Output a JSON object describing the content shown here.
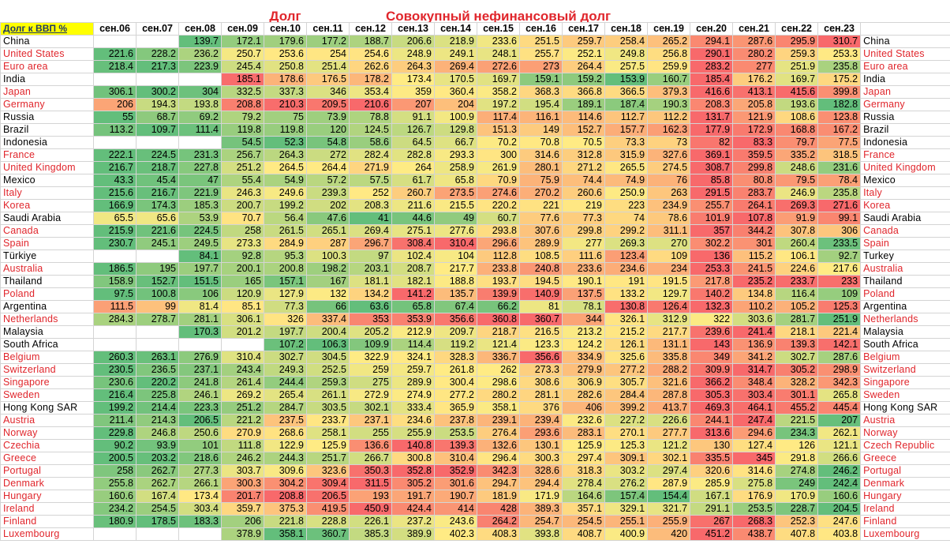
{
  "titles": [
    "Долг",
    "Совокупный нефинансовый долг"
  ],
  "corner": "Долг к ВВП %",
  "columns": [
    "сен.06",
    "сен.07",
    "сен.08",
    "сен.09",
    "сен.10",
    "сен.11",
    "сен.12",
    "сен.13",
    "сен.14",
    "сен.15",
    "сен.16",
    "сен.17",
    "сен.18",
    "сен.19",
    "сен.20",
    "сен.21",
    "сен.22",
    "сен.23"
  ],
  "color_scale": [
    "#63be7b",
    "#ffeb84",
    "#f8696b"
  ],
  "rows": [
    {
      "name": "China",
      "color": "#000000",
      "values": [
        null,
        null,
        139.7,
        172.1,
        179.6,
        177.2,
        188.7,
        206.6,
        218.9,
        233.6,
        251.5,
        259.7,
        258.4,
        265.2,
        294.1,
        287.6,
        295.9,
        310.7
      ]
    },
    {
      "name": "United States",
      "color": "#e0262c",
      "values": [
        221.6,
        228.2,
        236.2,
        250.7,
        253.6,
        254,
        254.6,
        248.9,
        249.1,
        248.1,
        255.7,
        252.1,
        249.8,
        256.8,
        290.1,
        280.2,
        259.3,
        253.3
      ]
    },
    {
      "name": "Euro area",
      "color": "#e0262c",
      "values": [
        218.4,
        217.3,
        223.9,
        245.4,
        250.8,
        251.4,
        262.6,
        264.3,
        269.4,
        272.6,
        273,
        264.4,
        257.5,
        259.9,
        283.2,
        277,
        251.9,
        235.8
      ]
    },
    {
      "name": "India",
      "color": "#000000",
      "values": [
        null,
        null,
        null,
        185.1,
        178.6,
        176.5,
        178.2,
        173.4,
        170.5,
        169.7,
        159.1,
        159.2,
        153.9,
        160.7,
        185.4,
        176.2,
        169.7,
        175.2
      ]
    },
    {
      "name": "Japan",
      "color": "#e0262c",
      "values": [
        306.1,
        300.2,
        304,
        332.5,
        337.3,
        346,
        353.4,
        359,
        360.4,
        358.2,
        368.3,
        366.8,
        366.5,
        379.3,
        416.6,
        413.1,
        415.6,
        399.8
      ]
    },
    {
      "name": "Germany",
      "color": "#e0262c",
      "values": [
        206,
        194.3,
        193.8,
        208.8,
        210.3,
        209.5,
        210.6,
        207,
        204,
        197.2,
        195.4,
        189.1,
        187.4,
        190.3,
        208.3,
        205.8,
        193.6,
        182.8
      ]
    },
    {
      "name": "Russia",
      "color": "#000000",
      "values": [
        55,
        68.7,
        69.2,
        79.2,
        75,
        73.9,
        78.8,
        91.1,
        100.9,
        117.4,
        116.1,
        114.6,
        112.7,
        112.2,
        131.7,
        121.9,
        108.6,
        123.8
      ]
    },
    {
      "name": "Brazil",
      "color": "#000000",
      "values": [
        113.2,
        109.7,
        111.4,
        119.8,
        119.8,
        120,
        124.5,
        126.7,
        129.8,
        151.3,
        149,
        152.7,
        157.7,
        162.3,
        177.9,
        172.9,
        168.8,
        167.2
      ]
    },
    {
      "name": "Indonesia",
      "color": "#000000",
      "values": [
        null,
        null,
        null,
        54.5,
        52.3,
        54.8,
        58.6,
        64.5,
        66.7,
        70.2,
        70.8,
        70.5,
        73.3,
        73,
        82,
        83.3,
        79.7,
        77.5
      ]
    },
    {
      "name": "France",
      "color": "#e0262c",
      "values": [
        222.1,
        224.5,
        231.3,
        256.7,
        264.3,
        272,
        282.4,
        282.8,
        293.3,
        300,
        314.6,
        312.8,
        315.9,
        327.6,
        369.1,
        359.5,
        335.2,
        318.5
      ]
    },
    {
      "name": "United Kingdom",
      "color": "#e0262c",
      "values": [
        216.7,
        218.7,
        227.8,
        251.2,
        264.5,
        264.4,
        271.9,
        264,
        258.9,
        261.9,
        280.1,
        271.2,
        265.5,
        274.5,
        308.7,
        299.8,
        248.6,
        231.6
      ]
    },
    {
      "name": "Mexico",
      "color": "#000000",
      "values": [
        43.3,
        45.4,
        47,
        55.4,
        54.9,
        57.2,
        57.5,
        61.7,
        65.8,
        70.9,
        75.9,
        74.4,
        74.9,
        76,
        85.8,
        80.8,
        79.5,
        78.4
      ]
    },
    {
      "name": "Italy",
      "color": "#e0262c",
      "values": [
        215.6,
        216.7,
        221.9,
        246.3,
        249.6,
        239.3,
        252,
        260.7,
        273.5,
        274.6,
        270.2,
        260.6,
        250.9,
        263,
        291.5,
        283.7,
        246.9,
        235.8
      ]
    },
    {
      "name": "Korea",
      "color": "#e0262c",
      "values": [
        166.9,
        174.3,
        185.3,
        200.7,
        199.2,
        202,
        208.3,
        211.6,
        215.5,
        220.2,
        221,
        219,
        223,
        234.9,
        255.7,
        264.1,
        269.3,
        271.6
      ]
    },
    {
      "name": "Saudi Arabia",
      "color": "#000000",
      "values": [
        65.5,
        65.6,
        53.9,
        70.7,
        56.4,
        47.6,
        41,
        44.6,
        49,
        60.7,
        77.6,
        77.3,
        74,
        78.6,
        101.9,
        107.8,
        91.9,
        99.1
      ]
    },
    {
      "name": "Canada",
      "color": "#e0262c",
      "values": [
        215.9,
        221.6,
        224.5,
        258,
        261.5,
        265.1,
        269.4,
        275.1,
        277.6,
        293.8,
        307.6,
        299.8,
        299.2,
        311.1,
        357,
        344.2,
        307.8,
        306
      ]
    },
    {
      "name": "Spain",
      "color": "#e0262c",
      "values": [
        230.7,
        245.1,
        249.5,
        273.3,
        284.9,
        287,
        296.7,
        308.4,
        310.4,
        296.6,
        289.9,
        277,
        269.3,
        270,
        302.2,
        301,
        260.4,
        233.5
      ]
    },
    {
      "name": "Türkiye",
      "name_right": "Turkey",
      "color": "#000000",
      "values": [
        null,
        null,
        84.1,
        92.8,
        95.3,
        100.3,
        97,
        102.4,
        104,
        112.8,
        108.5,
        111.6,
        123.4,
        109,
        136,
        115.2,
        106.1,
        92.7
      ]
    },
    {
      "name": "Australia",
      "color": "#e0262c",
      "values": [
        186.5,
        195,
        197.7,
        200.1,
        200.8,
        198.2,
        203.1,
        208.7,
        217.7,
        233.8,
        240.8,
        233.6,
        234.6,
        234,
        253.3,
        241.5,
        224.6,
        217.6
      ]
    },
    {
      "name": "Thailand",
      "color": "#000000",
      "values": [
        158.9,
        152.7,
        151.5,
        165,
        157.1,
        167,
        181.1,
        182.1,
        188.8,
        193.7,
        194.5,
        190.1,
        191,
        191.5,
        217.8,
        235.2,
        233.7,
        233
      ]
    },
    {
      "name": "Poland",
      "color": "#e0262c",
      "values": [
        97.5,
        100.8,
        106,
        120.9,
        127.9,
        132,
        134.2,
        141.2,
        135.7,
        139.9,
        140.9,
        137.5,
        133.2,
        129.7,
        140.2,
        134.8,
        116.4,
        109
      ]
    },
    {
      "name": "Argentina",
      "color": "#000000",
      "values": [
        111.5,
        99,
        81.4,
        85.1,
        77.3,
        66,
        63.6,
        65.8,
        67.4,
        66.2,
        81,
        78.1,
        130.8,
        126.4,
        132.3,
        110.2,
        105.2,
        125.3
      ]
    },
    {
      "name": "Netherlands",
      "color": "#e0262c",
      "values": [
        284.3,
        278.7,
        281.1,
        306.1,
        326,
        337.4,
        353,
        353.9,
        356.6,
        360.8,
        360.7,
        344,
        326.1,
        312.9,
        322,
        303.6,
        281.7,
        251.9
      ]
    },
    {
      "name": "Malaysia",
      "color": "#000000",
      "values": [
        null,
        null,
        170.3,
        201.2,
        197.7,
        200.4,
        205.2,
        212.9,
        209.7,
        218.7,
        216.5,
        213.2,
        215.2,
        217.7,
        239.6,
        241.4,
        218.1,
        221.4
      ]
    },
    {
      "name": "South Africa",
      "color": "#000000",
      "values": [
        null,
        null,
        null,
        null,
        107.2,
        106.3,
        109.9,
        114.4,
        119.2,
        121.4,
        123.3,
        124.2,
        126.1,
        131.1,
        143,
        136.9,
        139.3,
        142.1
      ]
    },
    {
      "name": "Belgium",
      "color": "#e0262c",
      "values": [
        260.3,
        263.1,
        276.9,
        310.4,
        302.7,
        304.5,
        322.9,
        324.1,
        328.3,
        336.7,
        356.6,
        334.9,
        325.6,
        335.8,
        349,
        341.2,
        302.7,
        287.6
      ]
    },
    {
      "name": "Switzerland",
      "color": "#e0262c",
      "values": [
        230.5,
        236.5,
        237.1,
        243.4,
        249.3,
        252.5,
        259,
        259.7,
        261.8,
        262,
        273.3,
        279.9,
        277.2,
        288.2,
        309.9,
        314.7,
        305.2,
        298.9
      ]
    },
    {
      "name": "Singapore",
      "color": "#e0262c",
      "values": [
        230.6,
        220.2,
        241.8,
        261.4,
        244.4,
        259.3,
        275,
        289.9,
        300.4,
        298.6,
        308.6,
        306.9,
        305.7,
        321.6,
        366.2,
        348.4,
        328.2,
        342.3
      ]
    },
    {
      "name": "Sweden",
      "color": "#e0262c",
      "values": [
        216.4,
        225.8,
        246.1,
        269.2,
        265.4,
        261.1,
        272.9,
        274.9,
        277.2,
        280.2,
        281.1,
        282.6,
        284.4,
        287.8,
        305.3,
        303.4,
        301.1,
        265.8
      ]
    },
    {
      "name": "Hong Kong SAR",
      "color": "#000000",
      "values": [
        199.2,
        214.4,
        223.3,
        251.2,
        284.7,
        303.5,
        302.1,
        333.4,
        365.9,
        358.1,
        376,
        406,
        399.2,
        413.7,
        469.3,
        464.1,
        455.2,
        445.4
      ]
    },
    {
      "name": "Austria",
      "color": "#e0262c",
      "values": [
        211.4,
        214.3,
        206.5,
        221.2,
        237.5,
        233.7,
        237.1,
        234.6,
        237.8,
        239.1,
        239.4,
        232.6,
        227.2,
        226.6,
        244.1,
        247.4,
        221.5,
        207
      ]
    },
    {
      "name": "Norway",
      "color": "#e0262c",
      "values": [
        229.8,
        246.8,
        250.6,
        270.9,
        268.6,
        258.1,
        255,
        255.9,
        253.5,
        276.4,
        293.6,
        283.1,
        270.1,
        277.7,
        313.6,
        294.6,
        234.3,
        262.1
      ]
    },
    {
      "name": "Czechia",
      "name_right": "Czech Republic",
      "color": "#e0262c",
      "values": [
        90.2,
        93.9,
        101,
        111.8,
        122.9,
        125.9,
        136.6,
        140.8,
        139.3,
        132.6,
        130.1,
        125.9,
        125.3,
        121.2,
        130,
        127.4,
        126,
        121.1
      ]
    },
    {
      "name": "Greece",
      "color": "#e0262c",
      "values": [
        200.5,
        203.2,
        218.6,
        246.2,
        244.3,
        251.7,
        266.7,
        300.8,
        310.4,
        296.4,
        300.3,
        297.4,
        309.1,
        302.1,
        335.5,
        345,
        291.8,
        266.6
      ]
    },
    {
      "name": "Portugal",
      "color": "#e0262c",
      "values": [
        258,
        262.7,
        277.3,
        303.7,
        309.6,
        323.6,
        350.3,
        352.8,
        352.9,
        342.3,
        328.6,
        318.3,
        303.2,
        297.4,
        320.6,
        314.6,
        274.8,
        246.2
      ]
    },
    {
      "name": "Denmark",
      "color": "#e0262c",
      "values": [
        255.8,
        262.7,
        266.1,
        300.3,
        304.2,
        309.4,
        311.5,
        305.2,
        301.6,
        294.7,
        294.4,
        278.4,
        276.2,
        287.9,
        285.9,
        275.8,
        249,
        242.4
      ]
    },
    {
      "name": "Hungary",
      "color": "#e0262c",
      "values": [
        160.6,
        167.4,
        173.4,
        201.7,
        208.8,
        206.5,
        193,
        191.7,
        190.7,
        181.9,
        171.9,
        164.6,
        157.4,
        154.4,
        167.1,
        176.9,
        170.9,
        160.6
      ]
    },
    {
      "name": "Ireland",
      "color": "#e0262c",
      "values": [
        234.2,
        254.5,
        303.4,
        359.7,
        375.3,
        419.5,
        450.9,
        424.4,
        414,
        428,
        389.3,
        357.1,
        329.1,
        321.7,
        291.1,
        253.5,
        228.7,
        204.5
      ]
    },
    {
      "name": "Finland",
      "color": "#e0262c",
      "values": [
        180.9,
        178.5,
        183.3,
        206,
        221.8,
        228.8,
        226.1,
        237.2,
        243.6,
        264.2,
        254.7,
        254.5,
        255.1,
        255.9,
        267,
        268.3,
        252.3,
        247.6
      ]
    },
    {
      "name": "Luxembourg",
      "color": "#e0262c",
      "values": [
        null,
        null,
        null,
        378.9,
        358.1,
        360.7,
        385.3,
        389.9,
        402.3,
        408.3,
        393.8,
        408.7,
        400.9,
        420,
        451.2,
        438.7,
        407.8,
        403.8
      ]
    }
  ]
}
